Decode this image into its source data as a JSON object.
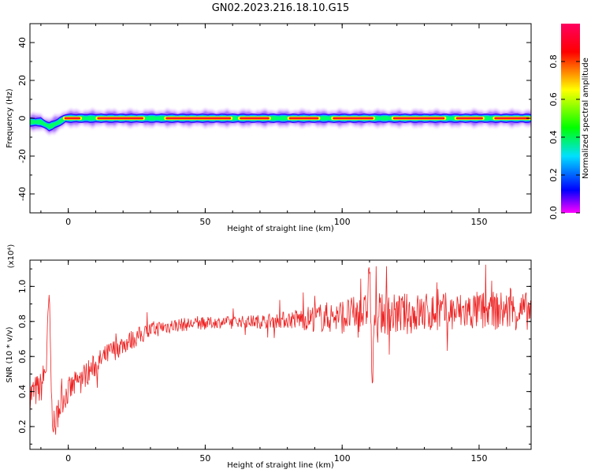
{
  "title": "GN02.2023.216.18.10.G15",
  "colors": {
    "snr_line": "#ee2222",
    "frame": "#000000",
    "background": "#ffffff"
  },
  "chart_data": [
    {
      "type": "heatmap",
      "xlabel": "Height of straight line (km)",
      "ylabel": "Frequency (Hz)",
      "xlim": [
        -14,
        169
      ],
      "ylim": [
        -50,
        50
      ],
      "xticks": [
        0,
        50,
        100,
        150
      ],
      "yticks": [
        -40,
        -20,
        0,
        20,
        40
      ],
      "colorbar": {
        "label": "Normalized spectral amplitude",
        "range": [
          0,
          1
        ],
        "ticks": [
          "0.0",
          "0.2",
          "0.4",
          "0.6",
          "0.8"
        ],
        "colormap": [
          "#ff00ff",
          "#0000ff",
          "#00e0ff",
          "#00ff00",
          "#ffff00",
          "#ff0000",
          "#ff0060"
        ]
      },
      "ridge": {
        "description_frequency_hz": 0,
        "center_frequency_hz": [
          {
            "x": -14,
            "y": -2
          },
          {
            "x": -10,
            "y": -2
          },
          {
            "x": -7,
            "y": -4.5
          },
          {
            "x": -4,
            "y": -2.5
          },
          {
            "x": -1,
            "y": 0
          },
          {
            "x": 169,
            "y": 0
          }
        ],
        "core_segments_km": [
          [
            -2,
            5
          ],
          [
            10,
            28
          ],
          [
            35,
            60
          ],
          [
            62,
            74
          ],
          [
            80,
            92
          ],
          [
            96,
            112
          ],
          [
            118,
            138
          ],
          [
            141,
            152
          ],
          [
            155,
            169
          ]
        ]
      }
    },
    {
      "type": "line",
      "xlabel": "Height of straight line (km)",
      "ylabel": "SNR (10 * v/v)",
      "yscale_label": "(x10⁴)",
      "xlim": [
        -14,
        169
      ],
      "ylim": [
        0.07,
        1.15
      ],
      "xticks": [
        0,
        50,
        100,
        150
      ],
      "yticks": [
        0.2,
        0.4,
        0.6,
        0.8,
        1.0
      ],
      "ytick_labels": [
        "0.2",
        "0.4",
        "0.6",
        "0.8",
        "1.0"
      ],
      "series": [
        {
          "trend": [
            {
              "x": -14,
              "y": 0.38
            },
            {
              "x": -12,
              "y": 0.4
            },
            {
              "x": -10,
              "y": 0.42
            },
            {
              "x": -8,
              "y": 0.55
            },
            {
              "x": -7,
              "y": 0.95
            },
            {
              "x": -6,
              "y": 0.3
            },
            {
              "x": -5,
              "y": 0.18
            },
            {
              "x": -4,
              "y": 0.27
            },
            {
              "x": -2,
              "y": 0.36
            },
            {
              "x": 0,
              "y": 0.4
            },
            {
              "x": 5,
              "y": 0.48
            },
            {
              "x": 10,
              "y": 0.55
            },
            {
              "x": 15,
              "y": 0.62
            },
            {
              "x": 20,
              "y": 0.67
            },
            {
              "x": 25,
              "y": 0.71
            },
            {
              "x": 30,
              "y": 0.75
            },
            {
              "x": 35,
              "y": 0.77
            },
            {
              "x": 40,
              "y": 0.78
            },
            {
              "x": 50,
              "y": 0.79
            },
            {
              "x": 60,
              "y": 0.8
            },
            {
              "x": 70,
              "y": 0.8
            },
            {
              "x": 80,
              "y": 0.81
            },
            {
              "x": 90,
              "y": 0.82
            },
            {
              "x": 100,
              "y": 0.83
            },
            {
              "x": 105,
              "y": 0.84
            },
            {
              "x": 109,
              "y": 0.85
            },
            {
              "x": 110,
              "y": 1.15
            },
            {
              "x": 111,
              "y": 0.42
            },
            {
              "x": 112,
              "y": 0.84
            },
            {
              "x": 120,
              "y": 0.84
            },
            {
              "x": 130,
              "y": 0.85
            },
            {
              "x": 140,
              "y": 0.85
            },
            {
              "x": 150,
              "y": 0.86
            },
            {
              "x": 160,
              "y": 0.86
            },
            {
              "x": 169,
              "y": 0.86
            }
          ],
          "noise_amplitude": [
            {
              "x": -14,
              "y": 0.1
            },
            {
              "x": 0,
              "y": 0.08
            },
            {
              "x": 20,
              "y": 0.06
            },
            {
              "x": 40,
              "y": 0.04
            },
            {
              "x": 60,
              "y": 0.03
            },
            {
              "x": 80,
              "y": 0.05
            },
            {
              "x": 90,
              "y": 0.08
            },
            {
              "x": 100,
              "y": 0.1
            },
            {
              "x": 120,
              "y": 0.12
            },
            {
              "x": 169,
              "y": 0.11
            }
          ]
        }
      ]
    }
  ]
}
